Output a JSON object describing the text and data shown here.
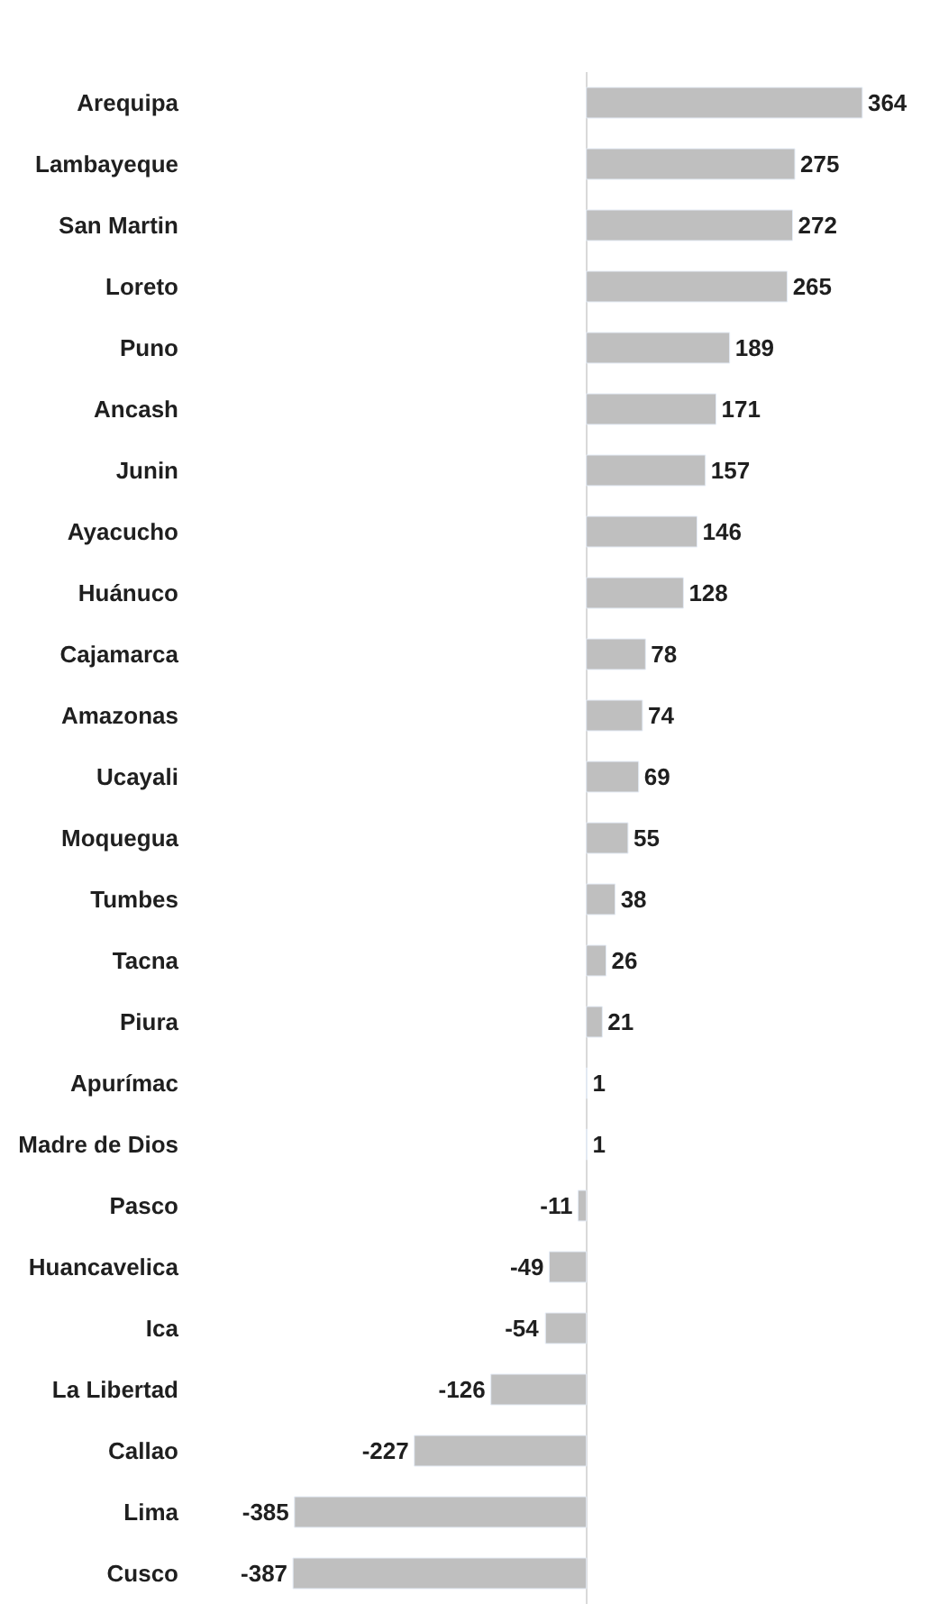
{
  "chart_data": {
    "type": "bar",
    "orientation": "horizontal",
    "data_labels": true,
    "tick_labels": "y",
    "color": "#bfbfbf",
    "categories": [
      "Arequipa",
      "Lambayeque",
      "San Martin",
      "Loreto",
      "Puno",
      "Ancash",
      "Junin",
      "Ayacucho",
      "Huánuco",
      "Cajamarca",
      "Amazonas",
      "Ucayali",
      "Moquegua",
      "Tumbes",
      "Tacna",
      "Piura",
      "Apurímac",
      "Madre de Dios",
      "Pasco",
      "Huancavelica",
      "Ica",
      "La Libertad",
      "Callao",
      "Lima",
      "Cusco"
    ],
    "values": [
      364,
      275,
      272,
      265,
      189,
      171,
      157,
      146,
      128,
      78,
      74,
      69,
      55,
      38,
      26,
      21,
      1,
      1,
      -11,
      -49,
      -54,
      -126,
      -227,
      -385,
      -387
    ]
  }
}
